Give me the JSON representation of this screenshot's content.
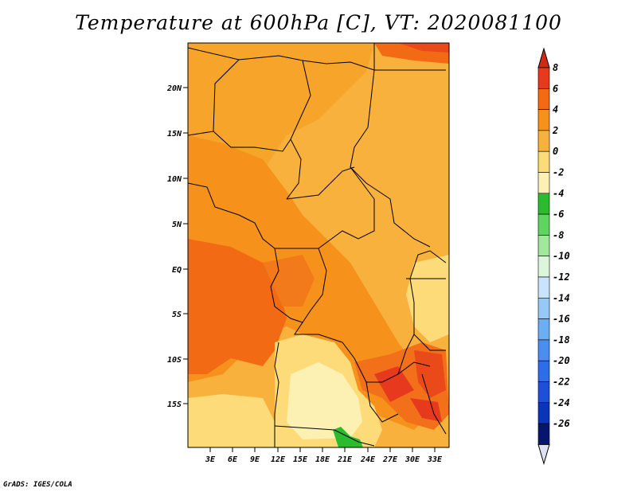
{
  "title": "Temperature at 600hPa [C], VT: 2020081100",
  "footer": "GrADS: IGES/COLA",
  "map": {
    "lat_labels": [
      "20N",
      "15N",
      "10N",
      "5N",
      "EQ",
      "5S",
      "10S",
      "15S"
    ],
    "lon_labels": [
      "3E",
      "6E",
      "9E",
      "12E",
      "15E",
      "18E",
      "21E",
      "24E",
      "27E",
      "30E",
      "33E"
    ]
  },
  "colorbar": {
    "labels": [
      "8",
      "6",
      "4",
      "2",
      "0",
      "-2",
      "-4",
      "-6",
      "-8",
      "-10",
      "-12",
      "-14",
      "-16",
      "-18",
      "-20",
      "-22",
      "-24",
      "-26"
    ],
    "colors": [
      "#e6391e",
      "#f26b14",
      "#f6921b",
      "#f9b13d",
      "#fddb79",
      "#fcf1b2",
      "#2cbb2f",
      "#5ed55e",
      "#a2e89c",
      "#dcf6dc",
      "#c8e3fb",
      "#98c8f7",
      "#6baef5",
      "#4b8ef0",
      "#2e6de8",
      "#1d50d6",
      "#0b35b8",
      "#06166e"
    ],
    "top_color": "#d02a16",
    "bottom_color": "#e0e0f4"
  }
}
